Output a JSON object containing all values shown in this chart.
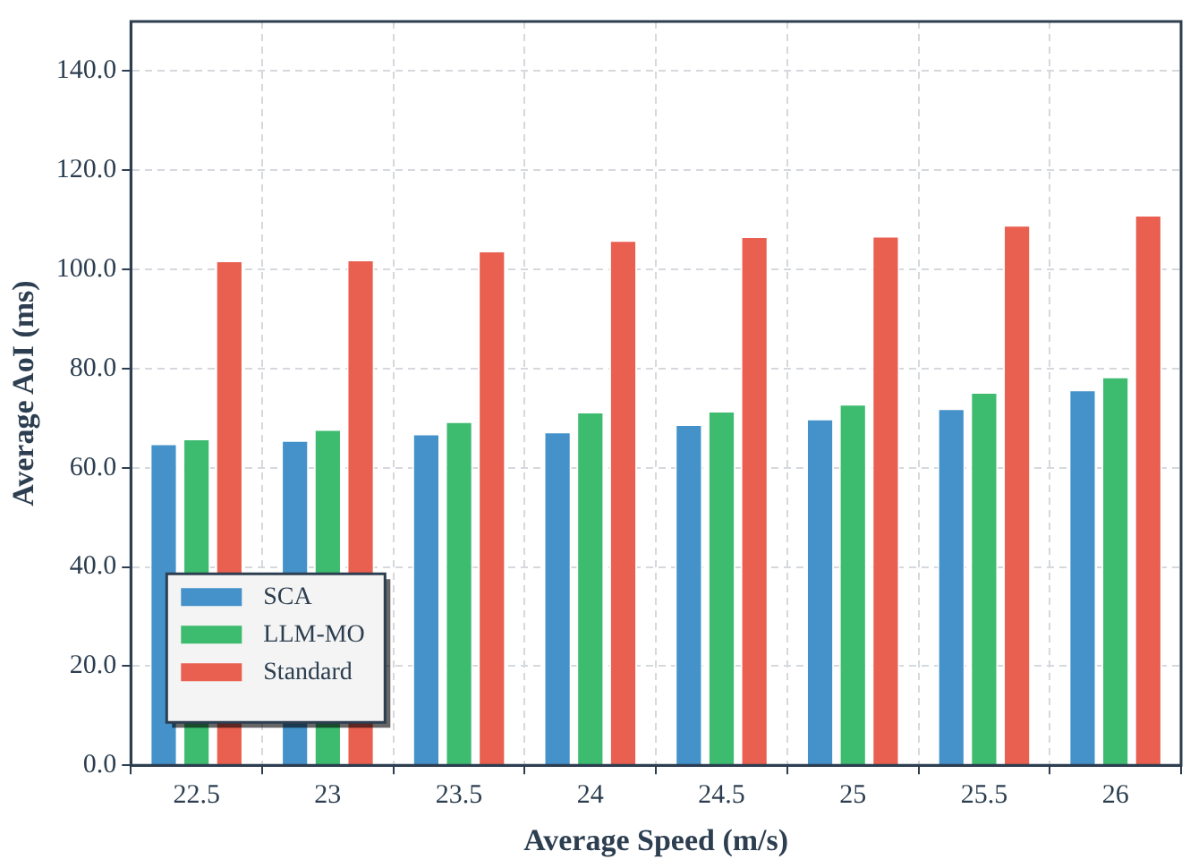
{
  "chart_data": {
    "type": "bar",
    "xlabel": "Average Speed (m/s)",
    "ylabel": "Average AoI (ms)",
    "categories": [
      "22.5",
      "23",
      "23.5",
      "24",
      "24.5",
      "25",
      "25.5",
      "26"
    ],
    "series": [
      {
        "name": "SCA",
        "color": "#4492c9",
        "values": [
          64.9,
          65.6,
          66.9,
          67.3,
          68.8,
          69.9,
          72.0,
          75.8
        ]
      },
      {
        "name": "LLM-MO",
        "color": "#3dbb6e",
        "values": [
          65.9,
          67.8,
          69.4,
          71.3,
          71.5,
          72.9,
          75.3,
          78.4
        ]
      },
      {
        "name": "Standard",
        "color": "#e95f50",
        "values": [
          101.8,
          102.0,
          103.8,
          105.9,
          106.7,
          106.8,
          109.0,
          111.0
        ]
      }
    ],
    "ylim": [
      0,
      150
    ],
    "yticks": [
      {
        "value": 0,
        "label": "0.0"
      },
      {
        "value": 20,
        "label": "20.0"
      },
      {
        "value": 40,
        "label": "40.0"
      },
      {
        "value": 60,
        "label": "60.0"
      },
      {
        "value": 80,
        "label": "80.0"
      },
      {
        "value": 100,
        "label": "100.0"
      },
      {
        "value": 120,
        "label": "120.0"
      },
      {
        "value": 140,
        "label": "140.0"
      }
    ],
    "grid": true,
    "legend": "bottom left"
  }
}
